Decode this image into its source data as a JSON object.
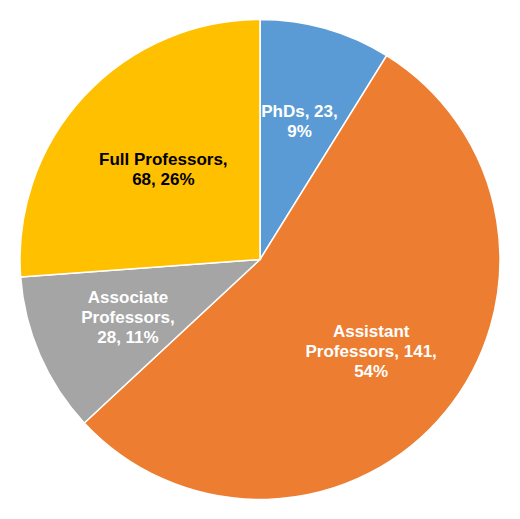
{
  "chart_data": {
    "type": "pie",
    "categories": [
      "PhDs, 23,\n9%",
      "Assistant\nProfessors, 141,\n54%",
      "Associate\nProfessors,\n28, 11%",
      "Full Professors,\n68, 26%"
    ],
    "values": [
      23,
      141,
      28,
      68
    ],
    "colors": [
      "#5B9BD5",
      "#ED7D31",
      "#A5A5A5",
      "#FFC000"
    ],
    "data_labels": true
  }
}
